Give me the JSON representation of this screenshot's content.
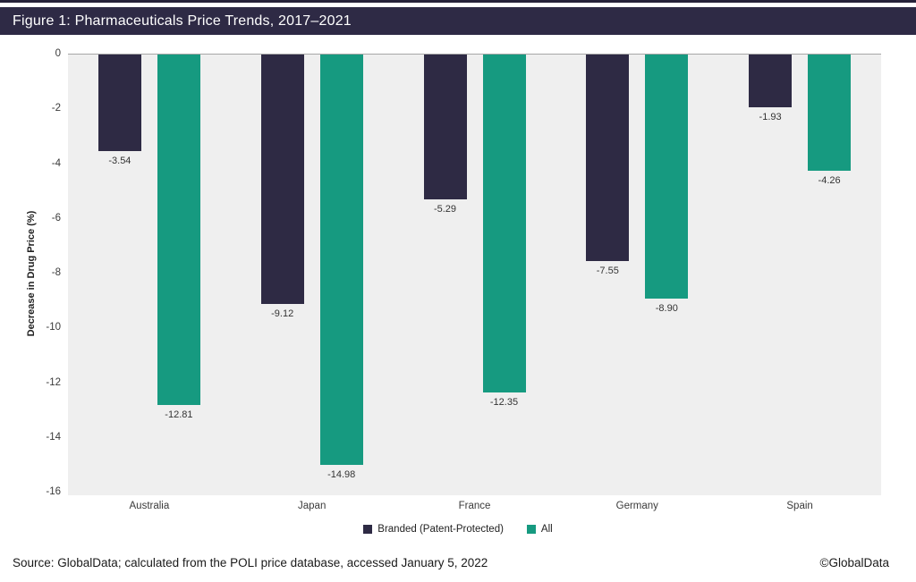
{
  "title_bar": {
    "title": "Figure 1: Pharmaceuticals Price Trends, 2017–2021"
  },
  "chart_data": {
    "type": "bar",
    "orientation": "vertical",
    "categories": [
      "Australia",
      "Japan",
      "France",
      "Germany",
      "Spain"
    ],
    "series": [
      {
        "name": "Branded (Patent-Protected)",
        "color": "#2e2a44",
        "values": [
          -3.54,
          -9.12,
          -5.29,
          -7.55,
          -1.93
        ]
      },
      {
        "name": "All",
        "color": "#169a80",
        "values": [
          -12.81,
          -14.98,
          -12.35,
          -8.9,
          -4.26
        ]
      }
    ],
    "title": "Figure 1: Pharmaceuticals Price Trends, 2017–2021",
    "xlabel": "",
    "ylabel": "Decrease in Drug Price (%)",
    "yticks": [
      0,
      -2,
      -4,
      -6,
      -8,
      -10,
      -12,
      -14,
      -16
    ],
    "ylim": [
      -16.1,
      0
    ],
    "grid": false,
    "data_labels": true,
    "data_label_decimals": 2,
    "legend_position": "bottom",
    "plot_background": "#efefef"
  },
  "footer": {
    "source": "Source: GlobalData; calculated from the POLI price database, accessed January 5, 2022",
    "copyright": "©GlobalData"
  },
  "colors": {
    "top_strip": "#262239",
    "title_bar_bg": "#2e2a45",
    "title_text": "#ffffff",
    "navy": "#2e2a44",
    "teal": "#169a80",
    "plot_bg": "#efefef",
    "zero_line": "#a6a6a6",
    "label_text": "#333333"
  }
}
